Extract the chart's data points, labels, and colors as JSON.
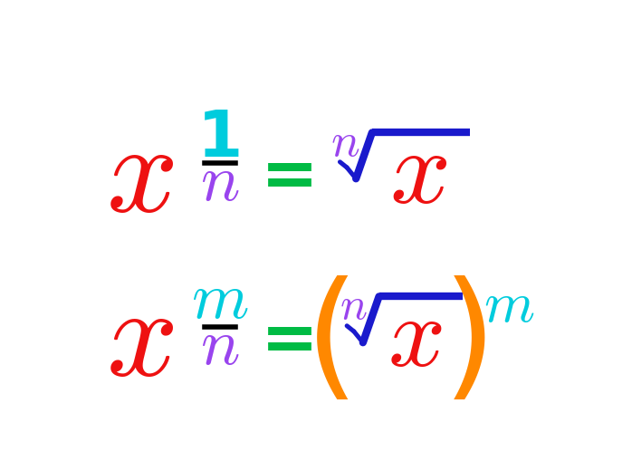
{
  "bg_color": "#ffffff",
  "eq1": {
    "x_color": "#ee1111",
    "one_color": "#00ccdd",
    "n_denom_color": "#9944ee",
    "bar_color": "#000000",
    "equals_color": "#00bb44",
    "radical_color": "#1a1acc",
    "radical_x_color": "#ee1111",
    "radical_n_color": "#9944ee"
  },
  "eq2": {
    "x_color": "#ee1111",
    "m_num_color": "#00ccdd",
    "n_denom_color": "#9944ee",
    "bar_color": "#000000",
    "equals_color": "#00bb44",
    "radical_color": "#1a1acc",
    "radical_x_color": "#ee1111",
    "radical_n_color": "#9944ee",
    "paren_color": "#ff8800",
    "m_exp_color": "#00ccdd"
  }
}
